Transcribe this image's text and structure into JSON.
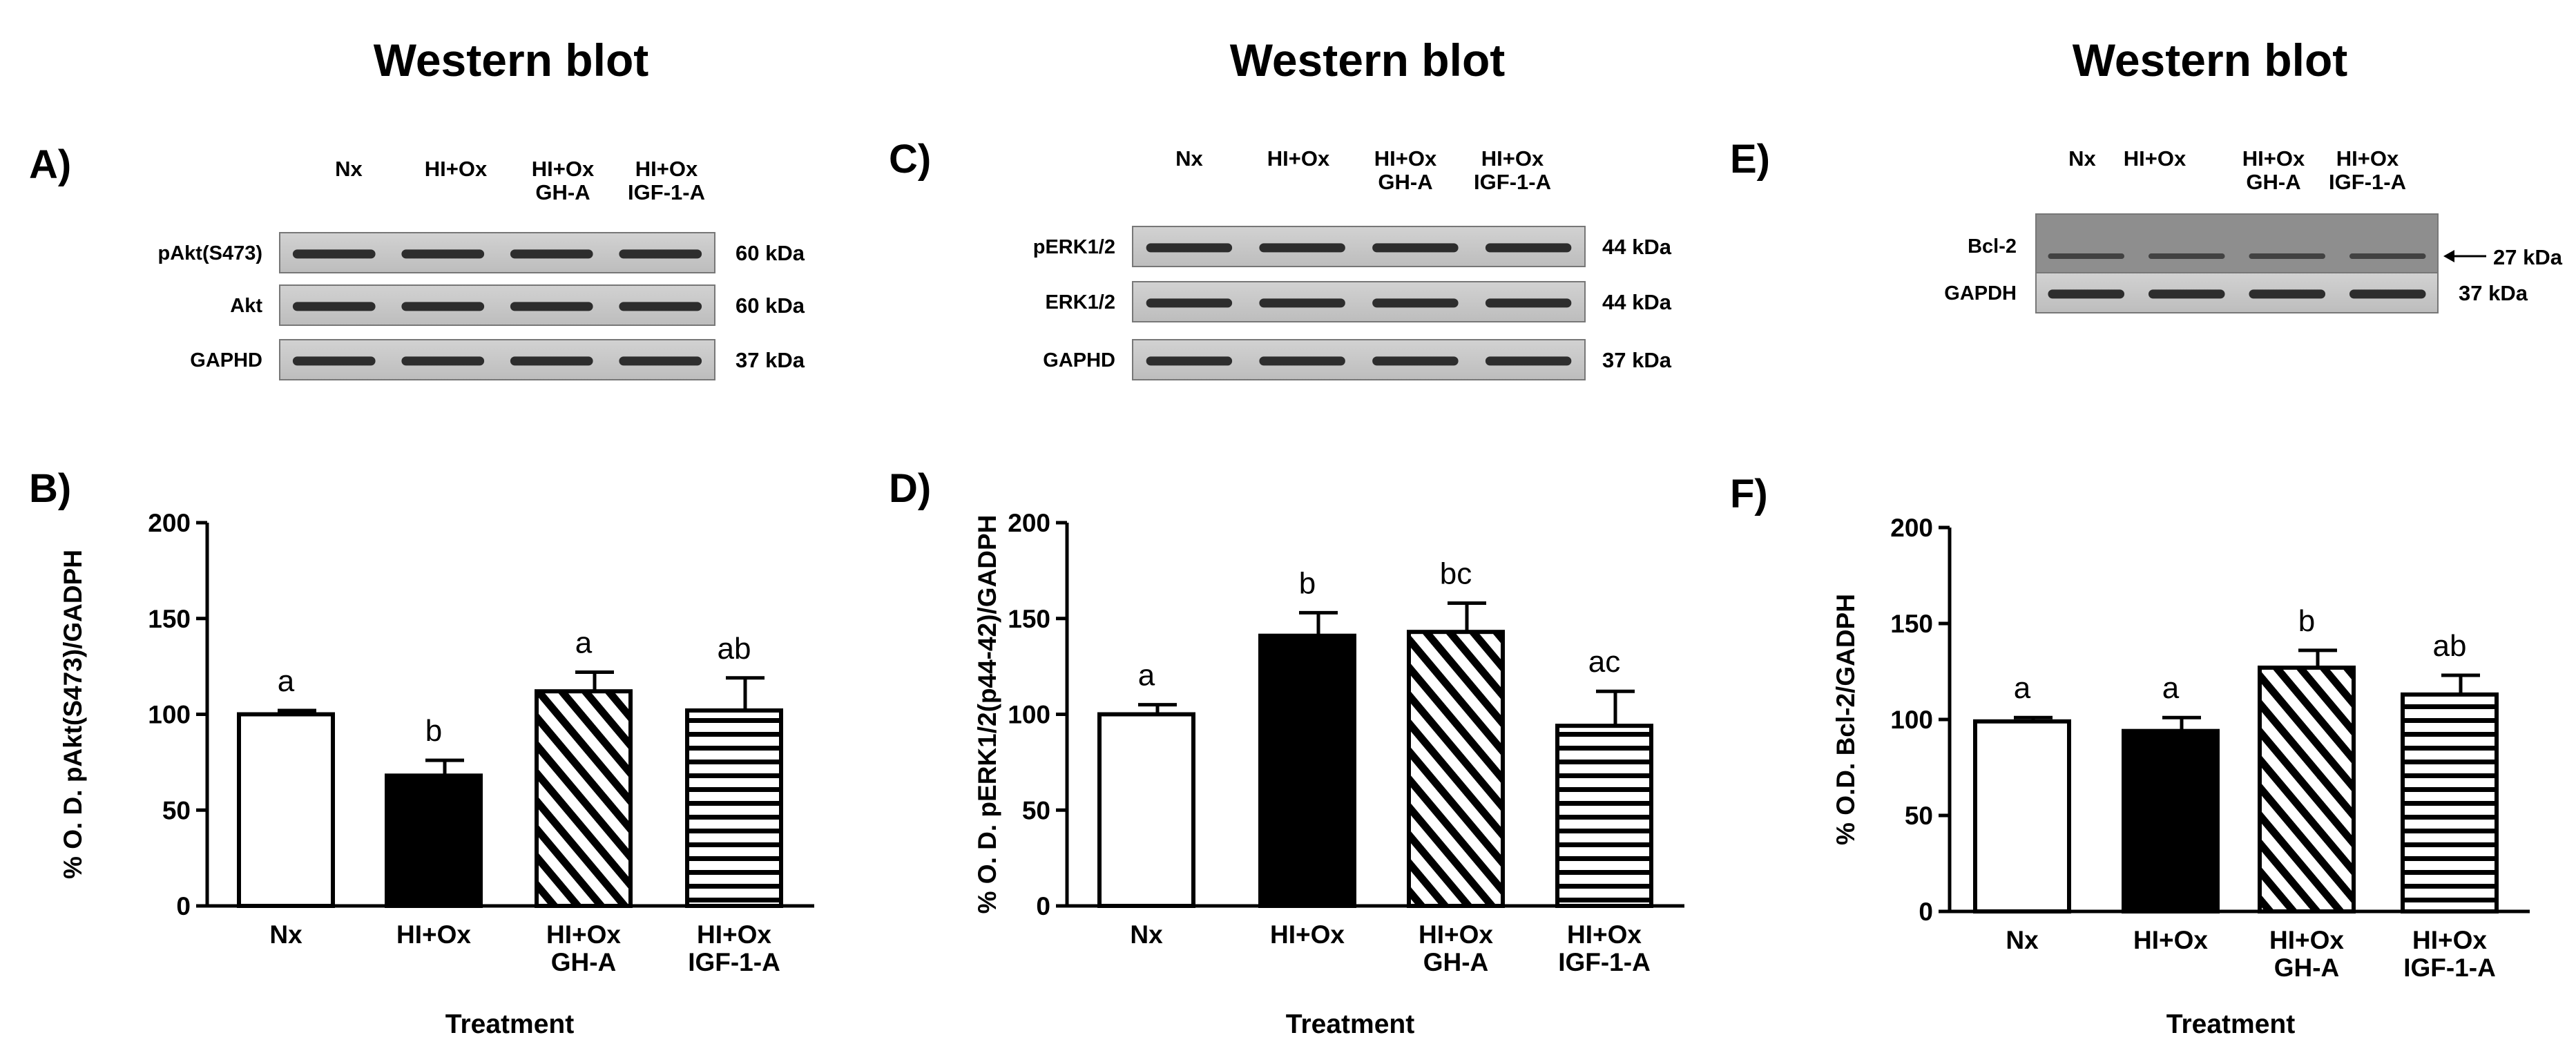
{
  "panels": [
    {
      "title": "Western blot",
      "blot": {
        "letter": "A)",
        "lanes": [
          [
            "Nx"
          ],
          [
            "HI+Ox"
          ],
          [
            "HI+Ox",
            "GH-A"
          ],
          [
            "HI+Ox",
            "IGF-1-A"
          ]
        ],
        "rows": [
          {
            "label": "pAkt(S473)",
            "kda": "60 kDa"
          },
          {
            "label": "Akt",
            "kda": "60 kDa"
          },
          {
            "label": "GAPHD",
            "kda": "37 kDa"
          }
        ]
      }
    },
    {
      "title": "Western blot",
      "blot": {
        "letter": "C)",
        "lanes": [
          [
            "Nx"
          ],
          [
            "HI+Ox"
          ],
          [
            "HI+Ox",
            "GH-A"
          ],
          [
            "HI+Ox",
            "IGF-1-A"
          ]
        ],
        "rows": [
          {
            "label": "pERK1/2",
            "kda": "44 kDa"
          },
          {
            "label": "ERK1/2",
            "kda": "44 kDa"
          },
          {
            "label": "GAPHD",
            "kda": "37 kDa"
          }
        ]
      }
    },
    {
      "title": "Western blot",
      "blot": {
        "letter": "E)",
        "lanes": [
          [
            "Nx"
          ],
          [
            "HI+Ox"
          ],
          [
            "HI+Ox",
            "GH-A"
          ],
          [
            "HI+Ox",
            "IGF-1-A"
          ]
        ],
        "rows": [
          {
            "label": "Bcl-2",
            "kda": "27 kDa",
            "arrow": true
          },
          {
            "label": "GAPDH",
            "kda": "37 kDa"
          }
        ]
      }
    }
  ],
  "chart_data": [
    {
      "letter": "B)",
      "type": "bar",
      "categories": [
        [
          "Nx"
        ],
        [
          "HI+Ox"
        ],
        [
          "HI+Ox",
          "GH-A"
        ],
        [
          "HI+Ox",
          "IGF-1-A"
        ]
      ],
      "values": [
        100,
        68,
        112,
        102
      ],
      "errors": [
        2,
        8,
        10,
        17
      ],
      "letters": [
        "a",
        "b",
        "a",
        "ab"
      ],
      "fills": [
        "white",
        "black",
        "diagonal",
        "horizontal"
      ],
      "ylabel": "% O. D. pAkt(S473)/GADPH",
      "xlabel": "Treatment",
      "ylim": [
        0,
        200
      ],
      "yticks": [
        0,
        50,
        100,
        150,
        200
      ]
    },
    {
      "letter": "D)",
      "type": "bar",
      "categories": [
        [
          "Nx"
        ],
        [
          "HI+Ox"
        ],
        [
          "HI+Ox",
          "GH-A"
        ],
        [
          "HI+Ox",
          "IGF-1-A"
        ]
      ],
      "values": [
        100,
        141,
        143,
        94
      ],
      "errors": [
        5,
        12,
        15,
        18
      ],
      "letters": [
        "a",
        "b",
        "bc",
        "ac"
      ],
      "fills": [
        "white",
        "black",
        "diagonal",
        "horizontal"
      ],
      "ylabel": "% O. D. pERK1/2(p44-42)/GADPH",
      "xlabel": "Treatment",
      "ylim": [
        0,
        200
      ],
      "yticks": [
        0,
        50,
        100,
        150,
        200
      ]
    },
    {
      "letter": "F)",
      "type": "bar",
      "categories": [
        [
          "Nx"
        ],
        [
          "HI+Ox"
        ],
        [
          "HI+Ox",
          "GH-A"
        ],
        [
          "HI+Ox",
          "IGF-1-A"
        ]
      ],
      "values": [
        99,
        94,
        127,
        113
      ],
      "errors": [
        2,
        7,
        9,
        10
      ],
      "letters": [
        "a",
        "a",
        "b",
        "ab"
      ],
      "fills": [
        "white",
        "black",
        "diagonal",
        "horizontal"
      ],
      "ylabel": "% O.D. Bcl-2/GADPH",
      "xlabel": "Treatment",
      "ylim": [
        0,
        200
      ],
      "yticks": [
        0,
        50,
        100,
        150,
        200
      ]
    }
  ]
}
